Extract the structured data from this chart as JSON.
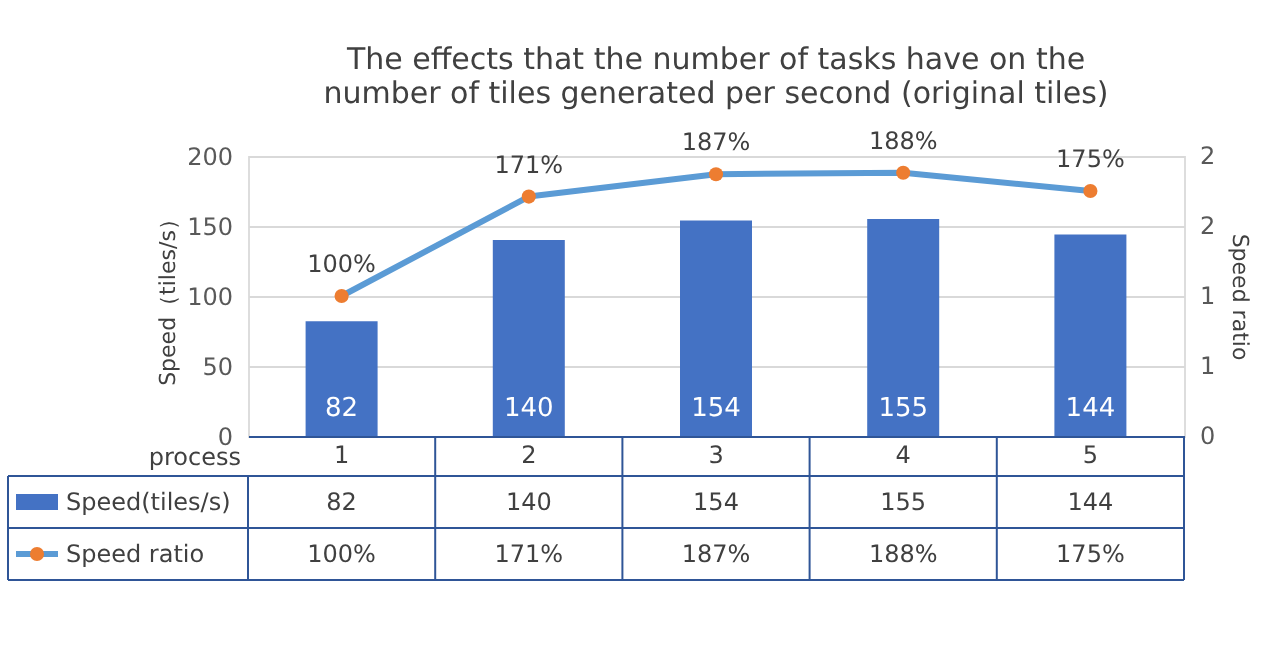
{
  "chart_data": {
    "type": "bar",
    "title": "The effects that the number of tasks have on the number of tiles generated per second (original tiles)",
    "categories": [
      "1",
      "2",
      "3",
      "4",
      "5"
    ],
    "xlabel": "process",
    "ylabel": "Speed（tiles/s）",
    "y2label": "Speed ratio",
    "series": [
      {
        "name": "Speed(tiles/s)",
        "color": "#4472c4",
        "values": [
          82,
          140,
          154,
          155,
          144
        ],
        "value_labels": [
          "82",
          "140",
          "154",
          "155",
          "144"
        ]
      },
      {
        "name": "Speed ratio",
        "type": "line",
        "axis": "y2",
        "color": "#5b9bd5",
        "colors": [
          "#ed7d31",
          "#ed7d31",
          "#ed7d31",
          "#ed7d31",
          "#ed7d31"
        ],
        "values": [
          1.0,
          1.71,
          1.87,
          1.88,
          1.75
        ],
        "value_labels": [
          "100%",
          "171%",
          "187%",
          "188%",
          "175%"
        ]
      }
    ],
    "ylim": [
      0,
      200
    ],
    "yticks": [
      0,
      50,
      100,
      150,
      200
    ],
    "y2lim": [
      0,
      2
    ],
    "y2ticks": [
      0,
      {
        "value": 0.5,
        "label": "1"
      },
      1,
      {
        "value": 1.5,
        "label": "2"
      },
      2
    ],
    "grid": "y",
    "legend": "bottom",
    "marker": "circle"
  }
}
